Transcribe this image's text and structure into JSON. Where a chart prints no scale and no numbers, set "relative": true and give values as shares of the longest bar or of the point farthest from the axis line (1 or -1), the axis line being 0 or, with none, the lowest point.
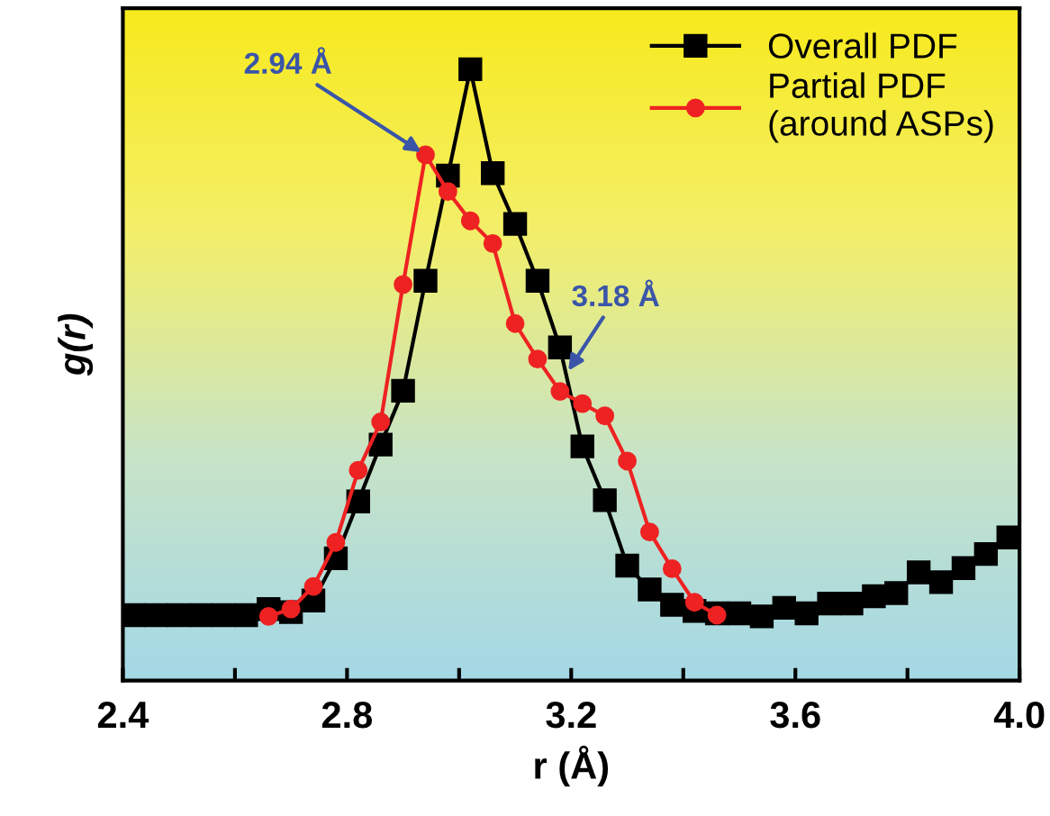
{
  "chart_data": {
    "type": "line",
    "relative": true,
    "xlabel": "r (Å)",
    "ylabel": "g(r)",
    "xlim": [
      2.4,
      4.0
    ],
    "xticks": [
      2.4,
      {
        "value": 2.6,
        "label": null
      },
      2.8,
      {
        "value": 3.0,
        "label": null
      },
      3.2,
      {
        "value": 3.4,
        "label": null
      },
      3.6,
      {
        "value": 3.8,
        "label": null
      },
      {
        "value": 4.0,
        "label": "4.0"
      }
    ],
    "legend": "top right",
    "grid": false,
    "line_style": "solid",
    "series": [
      {
        "name": "Overall PDF",
        "color": "#000000",
        "marker": "square",
        "x": [
          2.42,
          2.46,
          2.5,
          2.54,
          2.58,
          2.62,
          2.66,
          2.7,
          2.74,
          2.78,
          2.82,
          2.86,
          2.9,
          2.94,
          2.98,
          3.02,
          3.06,
          3.1,
          3.14,
          3.18,
          3.22,
          3.26,
          3.3,
          3.34,
          3.38,
          3.42,
          3.46,
          3.5,
          3.54,
          3.58,
          3.62,
          3.66,
          3.7,
          3.74,
          3.78,
          3.82,
          3.86,
          3.9,
          3.94,
          3.98
        ],
        "values": [
          0.107,
          0.107,
          0.107,
          0.107,
          0.107,
          0.107,
          0.117,
          0.112,
          0.131,
          0.2,
          0.293,
          0.386,
          0.474,
          0.654,
          0.826,
          1.0,
          0.83,
          0.747,
          0.654,
          0.545,
          0.383,
          0.295,
          0.188,
          0.149,
          0.124,
          0.114,
          0.11,
          0.11,
          0.105,
          0.119,
          0.11,
          0.126,
          0.126,
          0.138,
          0.143,
          0.177,
          0.161,
          0.184,
          0.207,
          0.234
        ]
      },
      {
        "name": "Partial PDF\n(around ASPs)",
        "color": "#ee2222",
        "marker": "circle",
        "x": [
          2.66,
          2.7,
          2.74,
          2.78,
          2.82,
          2.86,
          2.9,
          2.94,
          2.98,
          3.02,
          3.06,
          3.1,
          3.14,
          3.18,
          3.22,
          3.26,
          3.3,
          3.34,
          3.38,
          3.42,
          3.46
        ],
        "values": [
          0.105,
          0.117,
          0.154,
          0.226,
          0.344,
          0.423,
          0.648,
          0.86,
          0.8,
          0.752,
          0.715,
          0.584,
          0.526,
          0.473,
          0.453,
          0.433,
          0.359,
          0.243,
          0.183,
          0.128,
          0.107
        ]
      }
    ],
    "annotations": [
      {
        "text": "2.94 Å",
        "x": 2.94,
        "y": 0.86
      },
      {
        "text": "3.18 Å",
        "x": 3.19,
        "y": 0.5
      }
    ]
  }
}
